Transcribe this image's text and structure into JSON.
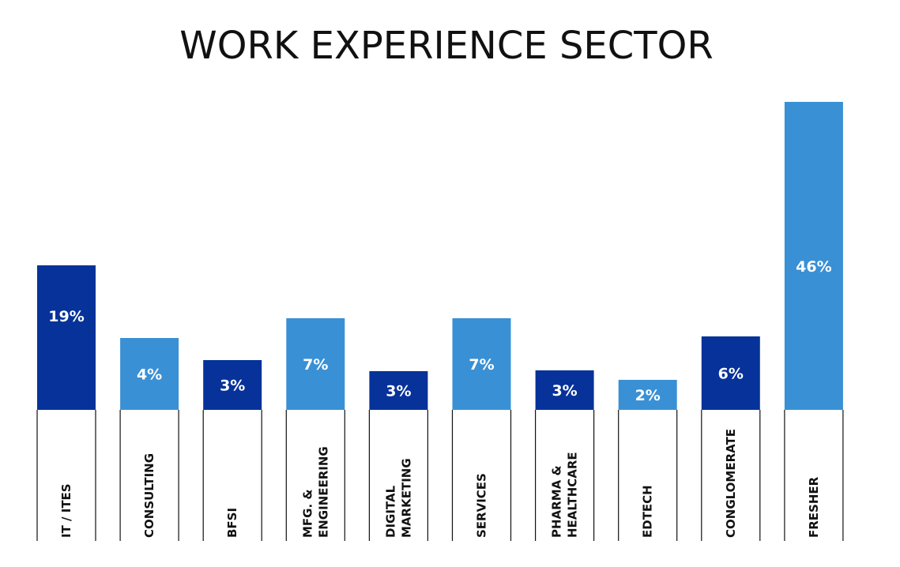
{
  "chart_data": {
    "type": "bar",
    "title": "WORK EXPERIENCE SECTOR",
    "categories": [
      [
        "IT / ITES"
      ],
      [
        "CONSULTING"
      ],
      [
        "BFSI"
      ],
      [
        "MFG. &",
        "ENGINEERING"
      ],
      [
        "DIGITAL",
        "MARKETING"
      ],
      [
        "SERVICES"
      ],
      [
        "PHARMA &",
        "HEALTHCARE"
      ],
      [
        "EDTECH"
      ],
      [
        "CONGLOMERATE"
      ],
      [
        "FRESHER"
      ]
    ],
    "values": [
      19,
      4,
      3,
      7,
      3,
      7,
      3,
      2,
      6,
      46
    ],
    "value_labels": [
      "19%",
      "4%",
      "3%",
      "7%",
      "3%",
      "7%",
      "3%",
      "2%",
      "6%",
      "46%"
    ],
    "bar_colors": [
      "#06329a",
      "#3a90d4",
      "#06329a",
      "#3a90d4",
      "#06329a",
      "#3a90d4",
      "#06329a",
      "#3a90d4",
      "#06329a",
      "#3a90d4"
    ]
  }
}
